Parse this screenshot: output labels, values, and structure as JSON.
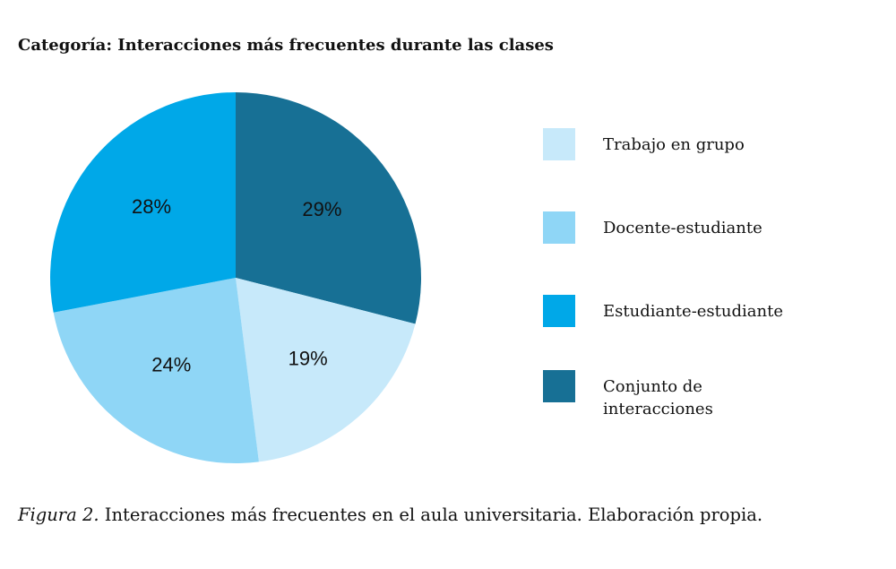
{
  "chart_data": {
    "type": "pie",
    "title": "Categoría: Interacciones más frecuentes durante las clases",
    "categories": [
      "Conjunto de interacciones",
      "Trabajo en grupo",
      "Docente-estudiante",
      "Estudiante-estudiante"
    ],
    "values": [
      29,
      19,
      24,
      28
    ],
    "labels": [
      "29%",
      "19%",
      "24%",
      "28%"
    ],
    "colors": [
      "#177095",
      "#c7e9fa",
      "#8fd6f6",
      "#00a8e8"
    ],
    "legend": [
      {
        "label": "Trabajo en grupo",
        "color": "#c7e9fa"
      },
      {
        "label": "Docente-estudiante",
        "color": "#8fd6f6"
      },
      {
        "label": "Estudiante-estudiante",
        "color": "#00a8e8"
      },
      {
        "label": "Conjunto de interacciones",
        "color": "#177095"
      }
    ],
    "legend_position": "right"
  },
  "caption": {
    "figure": "Figura 2.",
    "text": " Interacciones más frecuentes en el aula universitaria. Elaboración propia."
  }
}
